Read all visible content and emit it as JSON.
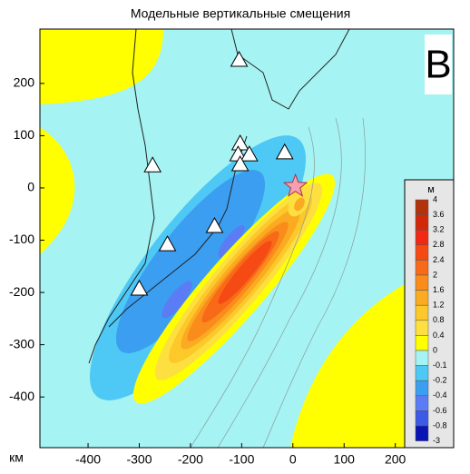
{
  "chart_data": {
    "type": "map",
    "title": "Модельные вертикальные смещения",
    "panel_label": "B",
    "x_label": "км",
    "xlim": [
      -494,
      314
    ],
    "ylim": [
      -497,
      304
    ],
    "xticks": [
      -400,
      -300,
      -200,
      -100,
      0,
      100,
      200
    ],
    "yticks": [
      -400,
      -300,
      -200,
      -100,
      0,
      100,
      200
    ],
    "stations": {
      "x": [
        -105,
        -274,
        -245,
        -300,
        -153,
        -103,
        -107,
        -85,
        -103,
        -16
      ],
      "y": [
        245,
        43,
        -108,
        -193,
        -73,
        85,
        64,
        64,
        45,
        68
      ]
    },
    "epicenter": {
      "x": 5,
      "y": 3
    },
    "colorbar": {
      "label": "м",
      "levels": [
        4,
        3.6,
        3.2,
        2.8,
        2.4,
        2,
        1.6,
        1.2,
        0.8,
        0.4,
        0,
        -0.1,
        -0.2,
        -0.4,
        -0.6,
        -0.8,
        -3
      ],
      "colors": [
        "#b4320a",
        "#d2280a",
        "#f02814",
        "#f54a14",
        "#f86a18",
        "#fa8c1c",
        "#fbab22",
        "#fdc82a",
        "#fde040",
        "#ffff00",
        "#a6f3f3",
        "#4ec8f5",
        "#3c9ef0",
        "#5a7cf5",
        "#3c5ae6",
        "#0a14b4"
      ]
    }
  }
}
